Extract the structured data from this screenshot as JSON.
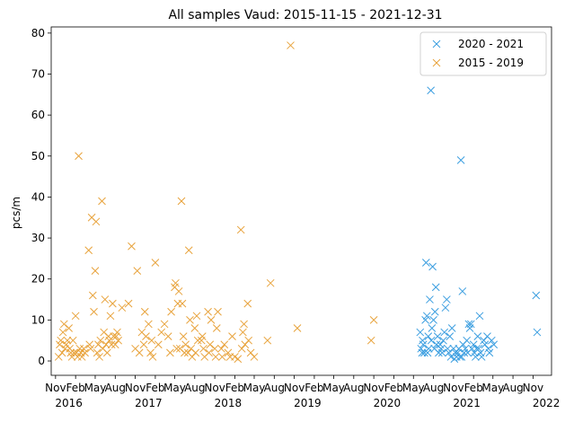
{
  "chart_data": {
    "type": "scatter",
    "title": "All samples Vaud: 2015-11-15 - 2021-12-31",
    "xlabel": "",
    "ylabel": "pcs/m",
    "ylim": [
      -3.5,
      81.5
    ],
    "xlim": [
      "2015-10-12",
      "2022-01-25"
    ],
    "yticks": [
      0,
      10,
      20,
      30,
      40,
      50,
      60,
      70,
      80
    ],
    "month_ticks": [
      "Nov",
      "Feb",
      "May",
      "Aug",
      "Nov",
      "Feb",
      "May",
      "Aug",
      "Nov",
      "Feb",
      "May",
      "Aug",
      "Nov",
      "Feb",
      "May",
      "Aug",
      "Nov",
      "Feb",
      "May",
      "Aug",
      "Nov",
      "Feb",
      "May",
      "Aug",
      "Nov"
    ],
    "month_tick_dates": [
      "2015-11-01",
      "2016-02-01",
      "2016-05-01",
      "2016-08-01",
      "2016-11-01",
      "2017-02-01",
      "2017-05-01",
      "2017-08-01",
      "2017-11-01",
      "2018-02-01",
      "2018-05-01",
      "2018-08-01",
      "2018-11-01",
      "2019-02-01",
      "2019-05-01",
      "2019-08-01",
      "2019-11-01",
      "2020-02-01",
      "2020-05-01",
      "2020-08-01",
      "2020-11-01",
      "2021-02-01",
      "2021-05-01",
      "2021-08-01",
      "2021-11-01"
    ],
    "year_ticks": [
      "2016",
      "2017",
      "2018",
      "2019",
      "2020",
      "2021",
      "2022"
    ],
    "year_tick_dates": [
      "2016-01-01",
      "2017-01-01",
      "2018-01-01",
      "2019-01-01",
      "2020-01-01",
      "2021-01-01",
      "2022-01-01"
    ],
    "marker": "x",
    "legend": {
      "placement": "top-right"
    },
    "grid": false,
    "series": [
      {
        "name": "2020 - 2021",
        "color": "#3b9ee0",
        "points": [
          [
            "2020-06-01",
            7
          ],
          [
            "2020-06-05",
            3
          ],
          [
            "2020-06-10",
            2
          ],
          [
            "2020-06-12",
            5
          ],
          [
            "2020-06-15",
            4
          ],
          [
            "2020-06-20",
            2
          ],
          [
            "2020-06-25",
            10
          ],
          [
            "2020-06-28",
            24
          ],
          [
            "2020-07-02",
            11
          ],
          [
            "2020-07-05",
            2
          ],
          [
            "2020-07-08",
            6
          ],
          [
            "2020-07-10",
            3
          ],
          [
            "2020-07-15",
            15
          ],
          [
            "2020-07-20",
            66
          ],
          [
            "2020-07-22",
            5
          ],
          [
            "2020-07-25",
            8
          ],
          [
            "2020-07-28",
            23
          ],
          [
            "2020-08-01",
            10
          ],
          [
            "2020-08-05",
            3
          ],
          [
            "2020-08-08",
            12
          ],
          [
            "2020-08-12",
            18
          ],
          [
            "2020-08-15",
            4
          ],
          [
            "2020-08-20",
            6
          ],
          [
            "2020-08-25",
            2
          ],
          [
            "2020-09-01",
            4
          ],
          [
            "2020-09-05",
            3
          ],
          [
            "2020-09-10",
            2
          ],
          [
            "2020-09-15",
            5
          ],
          [
            "2020-09-20",
            7
          ],
          [
            "2020-09-25",
            13
          ],
          [
            "2020-10-01",
            15
          ],
          [
            "2020-10-05",
            3
          ],
          [
            "2020-10-10",
            2
          ],
          [
            "2020-10-15",
            6
          ],
          [
            "2020-10-20",
            1
          ],
          [
            "2020-10-25",
            8
          ],
          [
            "2020-11-01",
            3
          ],
          [
            "2020-11-05",
            0.5
          ],
          [
            "2020-11-10",
            2
          ],
          [
            "2020-11-15",
            1
          ],
          [
            "2020-11-20",
            2
          ],
          [
            "2020-11-25",
            3
          ],
          [
            "2020-12-01",
            1
          ],
          [
            "2020-12-05",
            49
          ],
          [
            "2020-12-08",
            1
          ],
          [
            "2020-12-12",
            17
          ],
          [
            "2020-12-15",
            4
          ],
          [
            "2020-12-20",
            2
          ],
          [
            "2020-12-25",
            3
          ],
          [
            "2021-01-01",
            5
          ],
          [
            "2021-01-05",
            2
          ],
          [
            "2021-01-10",
            9
          ],
          [
            "2021-01-15",
            8
          ],
          [
            "2021-01-20",
            9
          ],
          [
            "2021-01-25",
            3
          ],
          [
            "2021-02-01",
            4
          ],
          [
            "2021-02-05",
            2
          ],
          [
            "2021-02-10",
            1
          ],
          [
            "2021-02-15",
            3
          ],
          [
            "2021-02-20",
            6
          ],
          [
            "2021-02-25",
            3
          ],
          [
            "2021-03-01",
            11
          ],
          [
            "2021-03-05",
            2
          ],
          [
            "2021-03-10",
            1
          ],
          [
            "2021-03-20",
            5
          ],
          [
            "2021-03-25",
            4
          ],
          [
            "2021-04-05",
            6
          ],
          [
            "2021-04-10",
            3
          ],
          [
            "2021-04-15",
            2
          ],
          [
            "2021-04-25",
            5
          ],
          [
            "2021-05-05",
            4
          ],
          [
            "2021-11-15",
            16
          ],
          [
            "2021-11-20",
            7
          ]
        ]
      },
      {
        "name": "2015 - 2019",
        "color": "#e8a33c",
        "points": [
          [
            "2015-11-15",
            1
          ],
          [
            "2015-11-20",
            4
          ],
          [
            "2015-11-25",
            5
          ],
          [
            "2015-12-01",
            2
          ],
          [
            "2015-12-05",
            7
          ],
          [
            "2015-12-10",
            9
          ],
          [
            "2015-12-15",
            3
          ],
          [
            "2015-12-20",
            4
          ],
          [
            "2015-12-25",
            5
          ],
          [
            "2016-01-01",
            8
          ],
          [
            "2016-01-05",
            3
          ],
          [
            "2016-01-10",
            2
          ],
          [
            "2016-01-15",
            1
          ],
          [
            "2016-01-20",
            5
          ],
          [
            "2016-01-25",
            2
          ],
          [
            "2016-02-01",
            11
          ],
          [
            "2016-02-05",
            2
          ],
          [
            "2016-02-10",
            1
          ],
          [
            "2016-02-15",
            50
          ],
          [
            "2016-02-20",
            3
          ],
          [
            "2016-02-25",
            2
          ],
          [
            "2016-03-01",
            1
          ],
          [
            "2016-03-10",
            3
          ],
          [
            "2016-03-15",
            2
          ],
          [
            "2016-04-01",
            27
          ],
          [
            "2016-04-05",
            4
          ],
          [
            "2016-04-10",
            3
          ],
          [
            "2016-04-15",
            35
          ],
          [
            "2016-04-20",
            16
          ],
          [
            "2016-04-25",
            12
          ],
          [
            "2016-05-01",
            22
          ],
          [
            "2016-05-05",
            34
          ],
          [
            "2016-05-10",
            2
          ],
          [
            "2016-05-15",
            4
          ],
          [
            "2016-05-20",
            1
          ],
          [
            "2016-05-25",
            5
          ],
          [
            "2016-06-01",
            39
          ],
          [
            "2016-06-05",
            3
          ],
          [
            "2016-06-10",
            7
          ],
          [
            "2016-06-15",
            15
          ],
          [
            "2016-06-20",
            4
          ],
          [
            "2016-06-25",
            2
          ],
          [
            "2016-07-01",
            6
          ],
          [
            "2016-07-05",
            5
          ],
          [
            "2016-07-10",
            11
          ],
          [
            "2016-07-15",
            4
          ],
          [
            "2016-07-20",
            14
          ],
          [
            "2016-07-25",
            6
          ],
          [
            "2016-08-01",
            4
          ],
          [
            "2016-08-05",
            6
          ],
          [
            "2016-08-10",
            7
          ],
          [
            "2016-08-15",
            5
          ],
          [
            "2016-09-01",
            13
          ],
          [
            "2016-10-01",
            14
          ],
          [
            "2016-10-15",
            28
          ],
          [
            "2016-11-01",
            3
          ],
          [
            "2016-11-10",
            22
          ],
          [
            "2016-11-20",
            2
          ],
          [
            "2016-12-01",
            7
          ],
          [
            "2016-12-10",
            4
          ],
          [
            "2016-12-15",
            12
          ],
          [
            "2016-12-20",
            6
          ],
          [
            "2017-01-01",
            9
          ],
          [
            "2017-01-10",
            2
          ],
          [
            "2017-01-15",
            5
          ],
          [
            "2017-01-20",
            1
          ],
          [
            "2017-02-01",
            24
          ],
          [
            "2017-02-15",
            4
          ],
          [
            "2017-03-01",
            7
          ],
          [
            "2017-03-15",
            9
          ],
          [
            "2017-04-01",
            6
          ],
          [
            "2017-04-10",
            2
          ],
          [
            "2017-04-15",
            12
          ],
          [
            "2017-05-01",
            18
          ],
          [
            "2017-05-05",
            19
          ],
          [
            "2017-05-10",
            3
          ],
          [
            "2017-05-15",
            14
          ],
          [
            "2017-05-20",
            17
          ],
          [
            "2017-05-25",
            3
          ],
          [
            "2017-06-01",
            39
          ],
          [
            "2017-06-05",
            14
          ],
          [
            "2017-06-10",
            6
          ],
          [
            "2017-06-15",
            2
          ],
          [
            "2017-06-20",
            4
          ],
          [
            "2017-07-01",
            2
          ],
          [
            "2017-07-05",
            27
          ],
          [
            "2017-07-10",
            10
          ],
          [
            "2017-07-15",
            3
          ],
          [
            "2017-07-20",
            1
          ],
          [
            "2017-08-01",
            8
          ],
          [
            "2017-08-05",
            2
          ],
          [
            "2017-08-10",
            11
          ],
          [
            "2017-08-15",
            5
          ],
          [
            "2017-09-01",
            5
          ],
          [
            "2017-09-05",
            6
          ],
          [
            "2017-09-10",
            3
          ],
          [
            "2017-09-15",
            1
          ],
          [
            "2017-10-01",
            12
          ],
          [
            "2017-10-05",
            2
          ],
          [
            "2017-10-10",
            4
          ],
          [
            "2017-10-15",
            10
          ],
          [
            "2017-11-01",
            3
          ],
          [
            "2017-11-05",
            1
          ],
          [
            "2017-11-10",
            8
          ],
          [
            "2017-11-15",
            12
          ],
          [
            "2017-12-01",
            3
          ],
          [
            "2017-12-05",
            1
          ],
          [
            "2017-12-15",
            4
          ],
          [
            "2018-01-01",
            2
          ],
          [
            "2018-01-10",
            1
          ],
          [
            "2018-01-20",
            6
          ],
          [
            "2018-02-01",
            1
          ],
          [
            "2018-02-15",
            0.5
          ],
          [
            "2018-03-01",
            32
          ],
          [
            "2018-03-05",
            3
          ],
          [
            "2018-03-10",
            7
          ],
          [
            "2018-03-15",
            9
          ],
          [
            "2018-03-20",
            4
          ],
          [
            "2018-04-01",
            14
          ],
          [
            "2018-04-05",
            5
          ],
          [
            "2018-04-15",
            2
          ],
          [
            "2018-05-01",
            1
          ],
          [
            "2018-07-01",
            5
          ],
          [
            "2018-07-15",
            19
          ],
          [
            "2018-10-15",
            77
          ],
          [
            "2018-11-15",
            8
          ],
          [
            "2019-10-20",
            5
          ],
          [
            "2019-11-01",
            10
          ]
        ]
      }
    ]
  }
}
